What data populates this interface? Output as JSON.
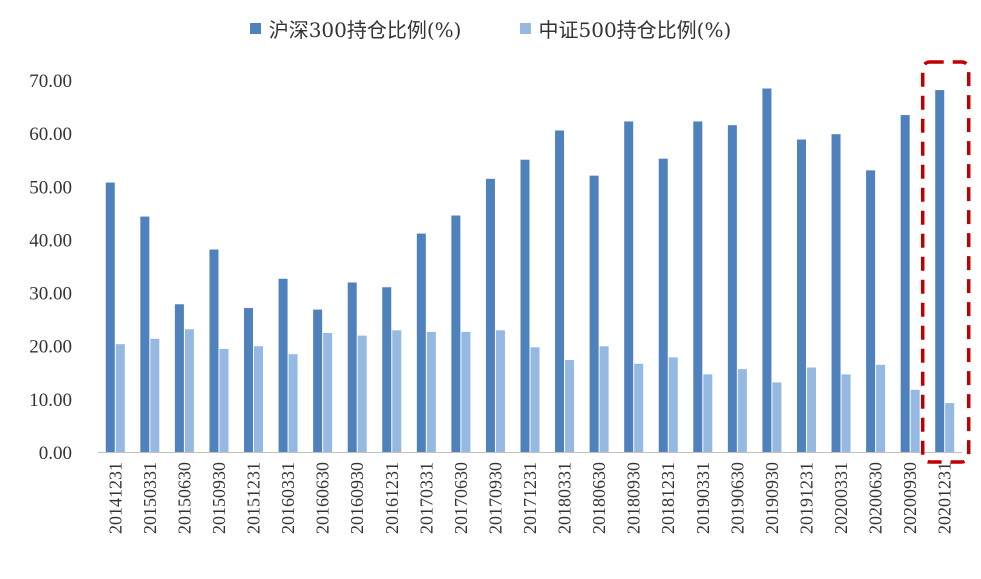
{
  "chart_data": {
    "type": "bar",
    "categories": [
      "20141231",
      "20150331",
      "20150630",
      "20150930",
      "20151231",
      "20160331",
      "20160630",
      "20160930",
      "20161231",
      "20170331",
      "20170630",
      "20170930",
      "20171231",
      "20180331",
      "20180630",
      "20180930",
      "20181231",
      "20190331",
      "20190630",
      "20190930",
      "20191231",
      "20200331",
      "20200630",
      "20200930",
      "20201231"
    ],
    "series": [
      {
        "name": "沪深300持仓比例(%)",
        "color": "#4f81bd",
        "values": [
          50.7,
          44.3,
          27.8,
          38.1,
          27.1,
          32.6,
          26.8,
          31.9,
          31.0,
          41.1,
          44.5,
          51.4,
          55.0,
          60.5,
          52.0,
          62.2,
          55.2,
          62.2,
          61.5,
          68.4,
          58.8,
          59.8,
          53.0,
          63.4,
          68.1
        ]
      },
      {
        "name": "中证500持仓比例(%)",
        "color": "#95b9e0",
        "values": [
          20.3,
          21.3,
          23.1,
          19.4,
          19.9,
          18.4,
          22.4,
          21.9,
          22.9,
          22.6,
          22.6,
          22.9,
          19.7,
          17.3,
          19.9,
          16.6,
          17.8,
          14.6,
          15.6,
          13.1,
          15.9,
          14.6,
          16.4,
          11.7,
          9.2
        ]
      }
    ],
    "ylim": [
      0,
      70
    ],
    "yticks": [
      "0.00",
      "10.00",
      "20.00",
      "30.00",
      "40.00",
      "50.00",
      "60.00",
      "70.00"
    ],
    "legend_position": "top-center",
    "highlight_category": "20201231",
    "highlight_color": "#c00000"
  }
}
